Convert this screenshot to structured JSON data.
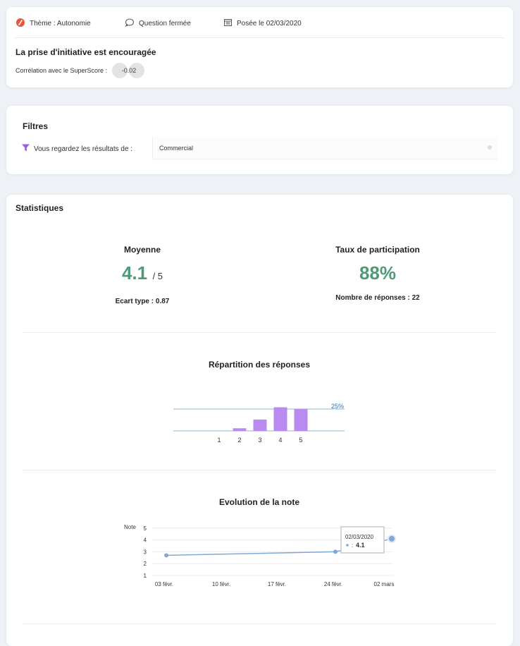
{
  "header": {
    "theme": "Thème : Autonomie",
    "question_type": "Question fermée",
    "posted": "Posée le 02/03/2020",
    "title": "La prise d'initiative est encouragée",
    "correlation_label": "Corrélation avec le SuperScore :",
    "correlation_value": "-0.02"
  },
  "filters": {
    "title": "Filtres",
    "label": "Vous regardez les résultats de :",
    "selected": "Commercial"
  },
  "stats": {
    "title": "Statistiques",
    "average_label": "Moyenne",
    "average_value": "4.1",
    "average_max": "/ 5",
    "stddev": "Ecart type : 0.87",
    "participation_label": "Taux de participation",
    "participation_value": "88%",
    "responses": "Nombre de réponses : 22"
  },
  "distribution": {
    "title": "Répartition des réponses",
    "reference_label": "25%",
    "categories": [
      "1",
      "2",
      "3",
      "4",
      "5"
    ],
    "values": [
      0,
      3,
      13,
      27,
      25
    ],
    "color": "#b98af0"
  },
  "evolution": {
    "title": "Evolution de la note",
    "ylabel": "Note",
    "yticks": [
      "5",
      "4",
      "3",
      "2",
      "1"
    ],
    "xticks": [
      "03 févr.",
      "10 févr.",
      "17 févr.",
      "24 févr.",
      "02 mars"
    ],
    "points": [
      {
        "x": "03 févr.",
        "y": 2.7
      },
      {
        "x": "24 févr.",
        "y": 3.0
      },
      {
        "x": "02 mars",
        "y": 4.1
      }
    ],
    "tooltip_date": "02/03/2020",
    "tooltip_value": "4.1",
    "tooltip_prefix": ":",
    "color": "#7ea9d6"
  },
  "chart_data": [
    {
      "type": "bar",
      "title": "Répartition des réponses",
      "categories": [
        "1",
        "2",
        "3",
        "4",
        "5"
      ],
      "values": [
        0,
        3,
        13,
        27,
        25
      ],
      "reference_line": 25
    },
    {
      "type": "line",
      "title": "Evolution de la note",
      "ylabel": "Note",
      "ylim": [
        1,
        5
      ],
      "x": [
        "03 févr.",
        "24 févr.",
        "02 mars"
      ],
      "values": [
        2.7,
        3.0,
        4.1
      ]
    }
  ]
}
